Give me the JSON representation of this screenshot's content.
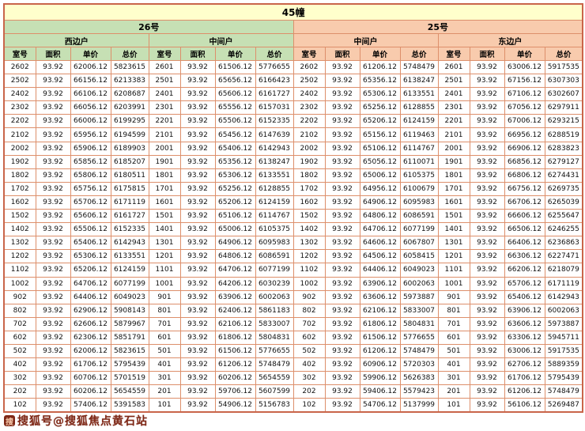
{
  "title": "45幢",
  "buildings": [
    {
      "name": "26号",
      "unit_types": [
        "西边户",
        "中间户"
      ]
    },
    {
      "name": "25号",
      "unit_types": [
        "中间户",
        "东边户"
      ]
    }
  ],
  "column_headers": [
    "室号",
    "面积",
    "单价",
    "总价"
  ],
  "watermark": "搜狐号@搜狐焦点黄石站",
  "colors": {
    "title_bg": "#ffffcc",
    "building_26_bg": "#c6e0b4",
    "building_25_bg": "#f8cbad",
    "grid_line": "#dd8f6b",
    "outer_border": "#c9654a",
    "watermark_text": "#7e2817"
  },
  "rows": [
    [
      "2602",
      "93.92",
      "62006.12",
      "5823615",
      "2601",
      "93.92",
      "61506.12",
      "5776655",
      "2602",
      "93.92",
      "61206.12",
      "5748479",
      "2601",
      "93.92",
      "63006.12",
      "5917535"
    ],
    [
      "2502",
      "93.92",
      "66156.12",
      "6213383",
      "2501",
      "93.92",
      "65656.12",
      "6166423",
      "2502",
      "93.92",
      "65356.12",
      "6138247",
      "2501",
      "93.92",
      "67156.12",
      "6307303"
    ],
    [
      "2402",
      "93.92",
      "66106.12",
      "6208687",
      "2401",
      "93.92",
      "65606.12",
      "6161727",
      "2402",
      "93.92",
      "65306.12",
      "6133551",
      "2401",
      "93.92",
      "67106.12",
      "6302607"
    ],
    [
      "2302",
      "93.92",
      "66056.12",
      "6203991",
      "2301",
      "93.92",
      "65556.12",
      "6157031",
      "2302",
      "93.92",
      "65256.12",
      "6128855",
      "2301",
      "93.92",
      "67056.12",
      "6297911"
    ],
    [
      "2202",
      "93.92",
      "66006.12",
      "6199295",
      "2201",
      "93.92",
      "65506.12",
      "6152335",
      "2202",
      "93.92",
      "65206.12",
      "6124159",
      "2201",
      "93.92",
      "67006.12",
      "6293215"
    ],
    [
      "2102",
      "93.92",
      "65956.12",
      "6194599",
      "2101",
      "93.92",
      "65456.12",
      "6147639",
      "2102",
      "93.92",
      "65156.12",
      "6119463",
      "2101",
      "93.92",
      "66956.12",
      "6288519"
    ],
    [
      "2002",
      "93.92",
      "65906.12",
      "6189903",
      "2001",
      "93.92",
      "65406.12",
      "6142943",
      "2002",
      "93.92",
      "65106.12",
      "6114767",
      "2001",
      "93.92",
      "66906.12",
      "6283823"
    ],
    [
      "1902",
      "93.92",
      "65856.12",
      "6185207",
      "1901",
      "93.92",
      "65356.12",
      "6138247",
      "1902",
      "93.92",
      "65056.12",
      "6110071",
      "1901",
      "93.92",
      "66856.12",
      "6279127"
    ],
    [
      "1802",
      "93.92",
      "65806.12",
      "6180511",
      "1801",
      "93.92",
      "65306.12",
      "6133551",
      "1802",
      "93.92",
      "65006.12",
      "6105375",
      "1801",
      "93.92",
      "66806.12",
      "6274431"
    ],
    [
      "1702",
      "93.92",
      "65756.12",
      "6175815",
      "1701",
      "93.92",
      "65256.12",
      "6128855",
      "1702",
      "93.92",
      "64956.12",
      "6100679",
      "1701",
      "93.92",
      "66756.12",
      "6269735"
    ],
    [
      "1602",
      "93.92",
      "65706.12",
      "6171119",
      "1601",
      "93.92",
      "65206.12",
      "6124159",
      "1602",
      "93.92",
      "64906.12",
      "6095983",
      "1601",
      "93.92",
      "66706.12",
      "6265039"
    ],
    [
      "1502",
      "93.92",
      "65606.12",
      "6161727",
      "1501",
      "93.92",
      "65106.12",
      "6114767",
      "1502",
      "93.92",
      "64806.12",
      "6086591",
      "1501",
      "93.92",
      "66606.12",
      "6255647"
    ],
    [
      "1402",
      "93.92",
      "65506.12",
      "6152335",
      "1401",
      "93.92",
      "65006.12",
      "6105375",
      "1402",
      "93.92",
      "64706.12",
      "6077199",
      "1401",
      "93.92",
      "66506.12",
      "6246255"
    ],
    [
      "1302",
      "93.92",
      "65406.12",
      "6142943",
      "1301",
      "93.92",
      "64906.12",
      "6095983",
      "1302",
      "93.92",
      "64606.12",
      "6067807",
      "1301",
      "93.92",
      "66406.12",
      "6236863"
    ],
    [
      "1202",
      "93.92",
      "65306.12",
      "6133551",
      "1201",
      "93.92",
      "64806.12",
      "6086591",
      "1202",
      "93.92",
      "64506.12",
      "6058415",
      "1201",
      "93.92",
      "66306.12",
      "6227471"
    ],
    [
      "1102",
      "93.92",
      "65206.12",
      "6124159",
      "1101",
      "93.92",
      "64706.12",
      "6077199",
      "1102",
      "93.92",
      "64406.12",
      "6049023",
      "1101",
      "93.92",
      "66206.12",
      "6218079"
    ],
    [
      "1002",
      "93.92",
      "64706.12",
      "6077199",
      "1001",
      "93.92",
      "64206.12",
      "6030239",
      "1002",
      "93.92",
      "63906.12",
      "6002063",
      "1001",
      "93.92",
      "65706.12",
      "6171119"
    ],
    [
      "902",
      "93.92",
      "64406.12",
      "6049023",
      "901",
      "93.92",
      "63906.12",
      "6002063",
      "902",
      "93.92",
      "63606.12",
      "5973887",
      "901",
      "93.92",
      "65406.12",
      "6142943"
    ],
    [
      "802",
      "93.92",
      "62906.12",
      "5908143",
      "801",
      "93.92",
      "62406.12",
      "5861183",
      "802",
      "93.92",
      "62106.12",
      "5833007",
      "801",
      "93.92",
      "63906.12",
      "6002063"
    ],
    [
      "702",
      "93.92",
      "62606.12",
      "5879967",
      "701",
      "93.92",
      "62106.12",
      "5833007",
      "702",
      "93.92",
      "61806.12",
      "5804831",
      "701",
      "93.92",
      "63606.12",
      "5973887"
    ],
    [
      "602",
      "93.92",
      "62306.12",
      "5851791",
      "601",
      "93.92",
      "61806.12",
      "5804831",
      "602",
      "93.92",
      "61506.12",
      "5776655",
      "601",
      "93.92",
      "63306.12",
      "5945711"
    ],
    [
      "502",
      "93.92",
      "62006.12",
      "5823615",
      "501",
      "93.92",
      "61506.12",
      "5776655",
      "502",
      "93.92",
      "61206.12",
      "5748479",
      "501",
      "93.92",
      "63006.12",
      "5917535"
    ],
    [
      "402",
      "93.92",
      "61706.12",
      "5795439",
      "401",
      "93.92",
      "61206.12",
      "5748479",
      "402",
      "93.92",
      "60906.12",
      "5720303",
      "401",
      "93.92",
      "62706.12",
      "5889359"
    ],
    [
      "302",
      "93.92",
      "60706.12",
      "5701519",
      "301",
      "93.92",
      "60206.12",
      "5654559",
      "302",
      "93.92",
      "59906.12",
      "5626383",
      "301",
      "93.92",
      "61706.12",
      "5795439"
    ],
    [
      "202",
      "93.92",
      "60206.12",
      "5654559",
      "201",
      "93.92",
      "59706.12",
      "5607599",
      "202",
      "93.92",
      "59406.12",
      "5579423",
      "201",
      "93.92",
      "61206.12",
      "5748479"
    ],
    [
      "102",
      "93.92",
      "57406.12",
      "5391583",
      "101",
      "93.92",
      "54906.12",
      "5156783",
      "102",
      "93.92",
      "54706.12",
      "5137999",
      "101",
      "93.92",
      "56106.12",
      "5269487"
    ]
  ]
}
